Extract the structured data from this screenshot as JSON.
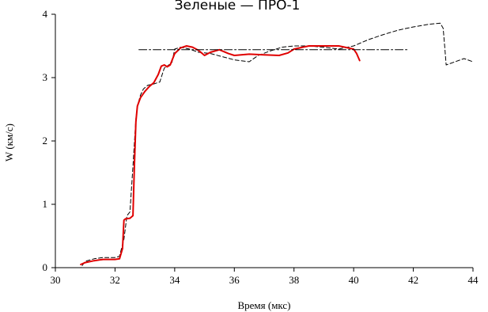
{
  "chart_data": {
    "type": "line",
    "title": "Зеленые — ПРО-1",
    "xlabel": "Время (мкс)",
    "ylabel": "W (км/с)",
    "xlim": [
      30,
      44
    ],
    "ylim": [
      0,
      4
    ],
    "xticks": [
      30,
      32,
      34,
      36,
      38,
      40,
      42,
      44
    ],
    "yticks": [
      0,
      1,
      2,
      3,
      4
    ],
    "grid": false,
    "legend": "none",
    "series": [
      {
        "style": "dashed",
        "color": "#000000",
        "x": [
          30.3,
          30.85,
          31.0,
          31.3,
          31.6,
          32.0,
          32.15,
          32.3,
          32.4,
          32.5,
          32.6,
          32.7,
          32.75,
          32.85,
          32.95,
          33.1,
          33.3,
          33.5,
          33.65,
          33.8,
          33.9,
          34.0,
          34.2,
          34.5,
          34.8,
          35.2,
          35.6,
          36.0,
          36.5,
          36.8,
          37.2,
          37.6,
          38.0,
          38.5,
          39.0,
          39.5,
          40.0,
          40.5,
          41.0,
          41.5,
          42.0,
          42.5,
          42.9,
          43.0,
          43.05,
          43.1,
          43.4,
          43.7,
          44.0
        ],
        "y": [
          0.0,
          0.0,
          0.1,
          0.14,
          0.16,
          0.16,
          0.18,
          0.45,
          0.82,
          0.88,
          1.6,
          2.35,
          2.55,
          2.72,
          2.82,
          2.88,
          2.9,
          2.93,
          3.15,
          3.2,
          3.22,
          3.45,
          3.48,
          3.45,
          3.4,
          3.38,
          3.33,
          3.28,
          3.25,
          3.35,
          3.42,
          3.48,
          3.5,
          3.5,
          3.48,
          3.45,
          3.5,
          3.6,
          3.68,
          3.75,
          3.8,
          3.84,
          3.86,
          3.78,
          3.5,
          3.2,
          3.25,
          3.3,
          3.25
        ]
      },
      {
        "style": "solid",
        "color": "#e00000",
        "x": [
          30.85,
          31.0,
          31.3,
          31.6,
          32.0,
          32.15,
          32.25,
          32.3,
          32.35,
          32.5,
          32.6,
          32.65,
          32.7,
          32.75,
          32.85,
          33.0,
          33.15,
          33.3,
          33.45,
          33.55,
          33.65,
          33.75,
          33.85,
          34.0,
          34.2,
          34.4,
          34.6,
          34.8,
          35.0,
          35.2,
          35.5,
          35.8,
          36.0,
          36.5,
          37.0,
          37.5,
          37.8,
          38.0,
          38.5,
          39.0,
          39.5,
          39.8,
          40.0,
          40.1,
          40.2
        ],
        "y": [
          0.05,
          0.08,
          0.11,
          0.13,
          0.13,
          0.14,
          0.3,
          0.75,
          0.77,
          0.78,
          0.82,
          1.6,
          2.3,
          2.55,
          2.68,
          2.78,
          2.86,
          2.92,
          3.05,
          3.18,
          3.2,
          3.17,
          3.2,
          3.38,
          3.47,
          3.5,
          3.48,
          3.43,
          3.35,
          3.4,
          3.44,
          3.38,
          3.35,
          3.37,
          3.36,
          3.35,
          3.39,
          3.45,
          3.5,
          3.5,
          3.5,
          3.47,
          3.45,
          3.38,
          3.27
        ]
      },
      {
        "style": "dashdot",
        "color": "#000000",
        "x": [
          32.8,
          41.8
        ],
        "y": [
          3.44,
          3.44
        ]
      }
    ]
  }
}
